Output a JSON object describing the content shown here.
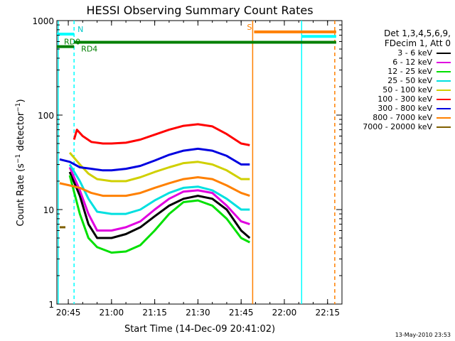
{
  "chart_data": {
    "type": "line",
    "title": "HESSI Observing Summary Count Rates",
    "xlabel": "Start Time (14-Dec-09 20:41:02)",
    "ylabel_prefix": "Count Rate (s",
    "ylabel_sup1": "−1",
    "ylabel_mid": " detector",
    "ylabel_sup2": "−1",
    "ylabel_suffix": ")",
    "yscale": "log",
    "ylim": [
      1,
      1000
    ],
    "xlim": [
      "20:41:02",
      "22:20:00"
    ],
    "x_tick_labels": [
      "20:45",
      "21:00",
      "21:15",
      "21:30",
      "21:45",
      "22:00",
      "22:15"
    ],
    "y_tick_labels": [
      "1",
      "10",
      "100",
      "1000"
    ],
    "legend_header": [
      "Det 1,3,4,5,6,9,",
      "FDecim 1, Att 0"
    ],
    "series": [
      {
        "name": "3 - 6 keV",
        "color": "#000000",
        "points": [
          [
            "20:45:30",
            25
          ],
          [
            "20:49",
            14
          ],
          [
            "20:52",
            7
          ],
          [
            "20:55",
            5
          ],
          [
            "21:00",
            5
          ],
          [
            "21:05",
            5.5
          ],
          [
            "21:10",
            6.5
          ],
          [
            "21:15",
            8.5
          ],
          [
            "21:20",
            11
          ],
          [
            "21:25",
            13
          ],
          [
            "21:30",
            14
          ],
          [
            "21:35",
            13
          ],
          [
            "21:40",
            10
          ],
          [
            "21:45",
            6
          ],
          [
            "21:48",
            5
          ]
        ]
      },
      {
        "name": "6 - 12 keV",
        "color": "#e000e0",
        "points": [
          [
            "20:45:30",
            28
          ],
          [
            "20:49",
            16
          ],
          [
            "20:52",
            9
          ],
          [
            "20:55",
            6
          ],
          [
            "21:00",
            6
          ],
          [
            "21:05",
            6.5
          ],
          [
            "21:10",
            7.5
          ],
          [
            "21:15",
            10
          ],
          [
            "21:20",
            13
          ],
          [
            "21:25",
            15.5
          ],
          [
            "21:30",
            16
          ],
          [
            "21:35",
            15
          ],
          [
            "21:40",
            11
          ],
          [
            "21:45",
            7.5
          ],
          [
            "21:48",
            7
          ]
        ]
      },
      {
        "name": "12 - 25 keV",
        "color": "#00e000",
        "points": [
          [
            "20:45:30",
            23
          ],
          [
            "20:49",
            9
          ],
          [
            "20:52",
            5
          ],
          [
            "20:55",
            4
          ],
          [
            "21:00",
            3.5
          ],
          [
            "21:05",
            3.6
          ],
          [
            "21:10",
            4.2
          ],
          [
            "21:15",
            6
          ],
          [
            "21:20",
            9
          ],
          [
            "21:25",
            12
          ],
          [
            "21:30",
            12.5
          ],
          [
            "21:35",
            11
          ],
          [
            "21:40",
            8
          ],
          [
            "21:45",
            5
          ],
          [
            "21:48",
            4.5
          ]
        ]
      },
      {
        "name": "25 - 50 keV",
        "color": "#00e0e0",
        "points": [
          [
            "20:45:30",
            30
          ],
          [
            "20:49",
            20
          ],
          [
            "20:52",
            13
          ],
          [
            "20:55",
            9.5
          ],
          [
            "21:00",
            9
          ],
          [
            "21:05",
            9
          ],
          [
            "21:10",
            10
          ],
          [
            "21:15",
            12.5
          ],
          [
            "21:20",
            15
          ],
          [
            "21:25",
            17
          ],
          [
            "21:30",
            17.5
          ],
          [
            "21:35",
            16
          ],
          [
            "21:40",
            13
          ],
          [
            "21:45",
            10
          ],
          [
            "21:48",
            10
          ]
        ]
      },
      {
        "name": "50 - 100 keV",
        "color": "#d0d000",
        "points": [
          [
            "20:45:30",
            40
          ],
          [
            "20:49",
            30
          ],
          [
            "20:52",
            24
          ],
          [
            "20:55",
            21
          ],
          [
            "21:00",
            20
          ],
          [
            "21:05",
            20
          ],
          [
            "21:10",
            22
          ],
          [
            "21:15",
            25
          ],
          [
            "21:20",
            28
          ],
          [
            "21:25",
            31
          ],
          [
            "21:30",
            32
          ],
          [
            "21:35",
            30
          ],
          [
            "21:40",
            26
          ],
          [
            "21:45",
            21
          ],
          [
            "21:48",
            21
          ]
        ]
      },
      {
        "name": "100 - 300 keV",
        "color": "#ff0000",
        "points": [
          [
            "20:47",
            55
          ],
          [
            "20:48",
            70
          ],
          [
            "20:50",
            60
          ],
          [
            "20:53",
            52
          ],
          [
            "20:57",
            50
          ],
          [
            "21:00",
            50
          ],
          [
            "21:05",
            51
          ],
          [
            "21:10",
            55
          ],
          [
            "21:15",
            62
          ],
          [
            "21:20",
            70
          ],
          [
            "21:25",
            77
          ],
          [
            "21:30",
            80
          ],
          [
            "21:35",
            76
          ],
          [
            "21:40",
            63
          ],
          [
            "21:45",
            50
          ],
          [
            "21:48",
            48
          ]
        ]
      },
      {
        "name": "300 - 800 keV",
        "color": "#0000e0",
        "points": [
          [
            "20:42",
            34
          ],
          [
            "20:45:30",
            32
          ],
          [
            "20:49",
            28
          ],
          [
            "20:53",
            27
          ],
          [
            "20:57",
            26
          ],
          [
            "21:00",
            26
          ],
          [
            "21:05",
            27
          ],
          [
            "21:10",
            29
          ],
          [
            "21:15",
            33
          ],
          [
            "21:20",
            38
          ],
          [
            "21:25",
            42
          ],
          [
            "21:30",
            44
          ],
          [
            "21:35",
            42
          ],
          [
            "21:40",
            37
          ],
          [
            "21:45",
            30
          ],
          [
            "21:48",
            30
          ]
        ]
      },
      {
        "name": "800 - 7000 keV",
        "color": "#ff8000",
        "points": [
          [
            "20:42",
            19
          ],
          [
            "20:45:30",
            18
          ],
          [
            "20:49",
            17
          ],
          [
            "20:53",
            15
          ],
          [
            "20:57",
            14
          ],
          [
            "21:00",
            14
          ],
          [
            "21:05",
            14
          ],
          [
            "21:10",
            15
          ],
          [
            "21:15",
            17
          ],
          [
            "21:20",
            19
          ],
          [
            "21:25",
            21
          ],
          [
            "21:30",
            22
          ],
          [
            "21:35",
            21
          ],
          [
            "21:40",
            18
          ],
          [
            "21:45",
            15
          ],
          [
            "21:48",
            14
          ]
        ]
      },
      {
        "name": "7000 - 20000 keV",
        "color": "#806000",
        "points": [
          [
            "20:42",
            6.5
          ],
          [
            "20:44",
            6.5
          ]
        ]
      }
    ],
    "flag_bars": [
      {
        "label": "RD0",
        "color": "#008000",
        "from": "20:41:02",
        "to": "20:47:00",
        "level": 530
      },
      {
        "label": "RD4",
        "color": "#008000",
        "from": "20:47:00",
        "to": "22:18:00",
        "level": 590
      },
      {
        "label": "N",
        "color": "#00ffff",
        "from": "20:41:02",
        "to": "20:47:00",
        "level": 720
      },
      {
        "label": "S",
        "color": "#ff8000",
        "from": "21:49:30",
        "to": "22:18:00",
        "level": 760
      },
      {
        "label": "",
        "color": "#00ffff",
        "from": "22:06:00",
        "to": "22:18:00",
        "level": 680
      }
    ],
    "vertical_markers": [
      {
        "time": "20:41:30",
        "color": "#00ffff",
        "style": "solid"
      },
      {
        "time": "20:47:00",
        "color": "#00ffff",
        "style": "dashed"
      },
      {
        "time": "21:49:00",
        "color": "#ff8000",
        "style": "solid"
      },
      {
        "time": "22:06:00",
        "color": "#00ffff",
        "style": "solid"
      },
      {
        "time": "22:17:30",
        "color": "#ff8000",
        "style": "dashed"
      }
    ]
  },
  "footer_date": "13-May-2010 23:53"
}
